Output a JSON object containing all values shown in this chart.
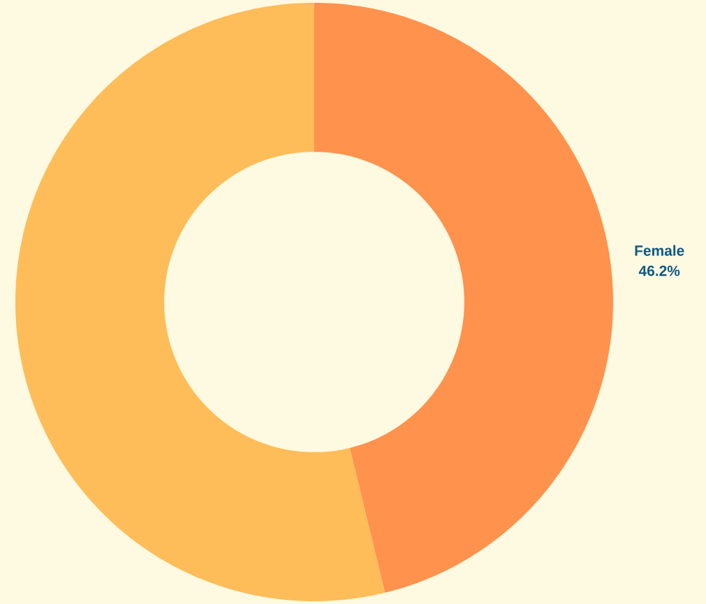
{
  "chart_data": {
    "type": "donut",
    "categories": [
      "Female",
      null
    ],
    "values": [
      46.2,
      53.8
    ],
    "colors": [
      "#ff924c",
      "#febd59"
    ],
    "value_labels": [
      "46.2%",
      null
    ]
  }
}
